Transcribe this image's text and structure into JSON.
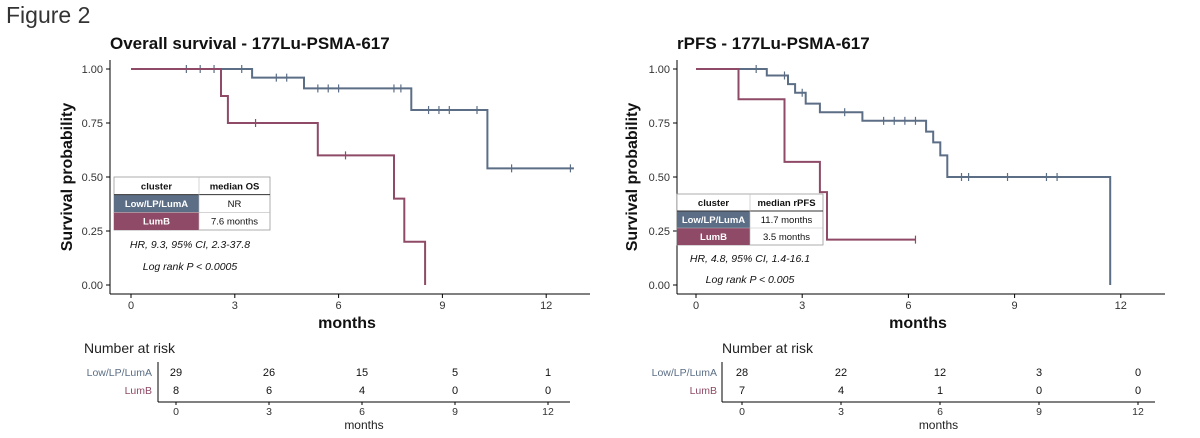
{
  "figure_title": "Figure 2",
  "colors": {
    "lum_a": "#5b6e86",
    "lum_b": "#8e4a66",
    "axis": "#333333",
    "line": "#000000"
  },
  "chart_data": [
    {
      "type": "line",
      "subtype": "kaplan-meier",
      "title": "Overall survival - 177Lu-PSMA-617",
      "xlabel": "months",
      "ylabel": "Survival probability",
      "xlim": [
        0,
        13
      ],
      "ylim": [
        0,
        1
      ],
      "x_ticks": [
        "0",
        "3",
        "6",
        "9",
        "12"
      ],
      "y_ticks": [
        "0.00",
        "0.25",
        "0.50",
        "0.75",
        "1.00"
      ],
      "series": [
        {
          "name": "Low/LP/LumA",
          "color": "#5b6e86",
          "steps": [
            [
              0,
              1.0
            ],
            [
              3.5,
              1.0
            ],
            [
              3.5,
              0.96
            ],
            [
              5.0,
              0.96
            ],
            [
              5.0,
              0.91
            ],
            [
              8.1,
              0.91
            ],
            [
              8.1,
              0.81
            ],
            [
              10.3,
              0.81
            ],
            [
              10.3,
              0.54
            ],
            [
              12.8,
              0.54
            ]
          ],
          "censor": [
            [
              1.6,
              1.0
            ],
            [
              2.0,
              1.0
            ],
            [
              2.4,
              1.0
            ],
            [
              3.2,
              1.0
            ],
            [
              4.2,
              0.96
            ],
            [
              4.5,
              0.96
            ],
            [
              5.4,
              0.91
            ],
            [
              5.7,
              0.91
            ],
            [
              6.0,
              0.91
            ],
            [
              7.6,
              0.91
            ],
            [
              7.8,
              0.91
            ],
            [
              8.6,
              0.81
            ],
            [
              8.9,
              0.81
            ],
            [
              9.2,
              0.81
            ],
            [
              10.0,
              0.81
            ],
            [
              11.0,
              0.54
            ],
            [
              12.7,
              0.54
            ]
          ]
        },
        {
          "name": "LumB",
          "color": "#8e4a66",
          "steps": [
            [
              0,
              1.0
            ],
            [
              2.6,
              1.0
            ],
            [
              2.6,
              0.875
            ],
            [
              2.8,
              0.875
            ],
            [
              2.8,
              0.75
            ],
            [
              5.4,
              0.75
            ],
            [
              5.4,
              0.6
            ],
            [
              7.6,
              0.6
            ],
            [
              7.6,
              0.4
            ],
            [
              7.9,
              0.4
            ],
            [
              7.9,
              0.2
            ],
            [
              8.5,
              0.2
            ],
            [
              8.5,
              0.0
            ]
          ],
          "censor": [
            [
              3.6,
              0.75
            ],
            [
              6.2,
              0.6
            ]
          ]
        }
      ],
      "summary_table": {
        "headers": [
          "cluster",
          "median OS"
        ],
        "rows": [
          [
            "Low/LP/LumA",
            "NR"
          ],
          [
            "LumB",
            "7.6 months"
          ]
        ]
      },
      "annotation_hr": "HR, 9.3, 95% CI, 2.3-37.8",
      "annotation_p": "Log rank P < 0.0005",
      "risk_table": {
        "title": "Number at risk",
        "xlabel": "months",
        "times": [
          "0",
          "3",
          "6",
          "9",
          "12"
        ],
        "rows": [
          {
            "label": "Low/LP/LumA",
            "values": [
              "29",
              "26",
              "15",
              "5",
              "1"
            ]
          },
          {
            "label": "LumB",
            "values": [
              "8",
              "6",
              "4",
              "0",
              "0"
            ]
          }
        ]
      }
    },
    {
      "type": "line",
      "subtype": "kaplan-meier",
      "title": "rPFS - 177Lu-PSMA-617",
      "xlabel": "months",
      "ylabel": "Survival probability",
      "xlim": [
        0,
        12.5
      ],
      "ylim": [
        0,
        1
      ],
      "x_ticks": [
        "0",
        "3",
        "6",
        "9",
        "12"
      ],
      "y_ticks": [
        "0.00",
        "0.25",
        "0.50",
        "0.75",
        "1.00"
      ],
      "series": [
        {
          "name": "Low/LP/LumA",
          "color": "#5b6e86",
          "steps": [
            [
              0,
              1.0
            ],
            [
              2.0,
              1.0
            ],
            [
              2.0,
              0.97
            ],
            [
              2.6,
              0.97
            ],
            [
              2.6,
              0.93
            ],
            [
              2.8,
              0.93
            ],
            [
              2.8,
              0.89
            ],
            [
              3.1,
              0.89
            ],
            [
              3.1,
              0.84
            ],
            [
              3.5,
              0.84
            ],
            [
              3.5,
              0.8
            ],
            [
              4.7,
              0.8
            ],
            [
              4.7,
              0.76
            ],
            [
              6.5,
              0.76
            ],
            [
              6.5,
              0.71
            ],
            [
              6.7,
              0.71
            ],
            [
              6.7,
              0.66
            ],
            [
              6.9,
              0.66
            ],
            [
              6.9,
              0.6
            ],
            [
              7.1,
              0.6
            ],
            [
              7.1,
              0.5
            ],
            [
              11.7,
              0.5
            ],
            [
              11.7,
              0.0
            ]
          ],
          "censor": [
            [
              1.7,
              1.0
            ],
            [
              2.5,
              0.97
            ],
            [
              3.0,
              0.89
            ],
            [
              4.2,
              0.8
            ],
            [
              5.3,
              0.76
            ],
            [
              5.6,
              0.76
            ],
            [
              5.9,
              0.76
            ],
            [
              6.2,
              0.76
            ],
            [
              7.5,
              0.5
            ],
            [
              7.7,
              0.5
            ],
            [
              8.8,
              0.5
            ],
            [
              9.9,
              0.5
            ],
            [
              10.2,
              0.5
            ]
          ]
        },
        {
          "name": "LumB",
          "color": "#8e4a66",
          "steps": [
            [
              0,
              1.0
            ],
            [
              1.2,
              1.0
            ],
            [
              1.2,
              0.86
            ],
            [
              2.5,
              0.86
            ],
            [
              2.5,
              0.57
            ],
            [
              3.5,
              0.57
            ],
            [
              3.5,
              0.43
            ],
            [
              3.7,
              0.43
            ],
            [
              3.7,
              0.21
            ],
            [
              6.2,
              0.21
            ]
          ],
          "censor": [
            [
              6.2,
              0.21
            ]
          ]
        }
      ],
      "summary_table": {
        "headers": [
          "cluster",
          "median rPFS"
        ],
        "rows": [
          [
            "Low/LP/LumA",
            "11.7 months"
          ],
          [
            "LumB",
            "3.5 months"
          ]
        ]
      },
      "annotation_hr": "HR, 4.8, 95% CI, 1.4-16.1",
      "annotation_p": "Log rank P < 0.005",
      "risk_table": {
        "title": "Number at risk",
        "xlabel": "months",
        "times": [
          "0",
          "3",
          "6",
          "9",
          "12"
        ],
        "rows": [
          {
            "label": "Low/LP/LumA",
            "values": [
              "28",
              "22",
              "12",
              "3",
              "0"
            ]
          },
          {
            "label": "LumB",
            "values": [
              "7",
              "4",
              "1",
              "0",
              "0"
            ]
          }
        ]
      }
    }
  ]
}
